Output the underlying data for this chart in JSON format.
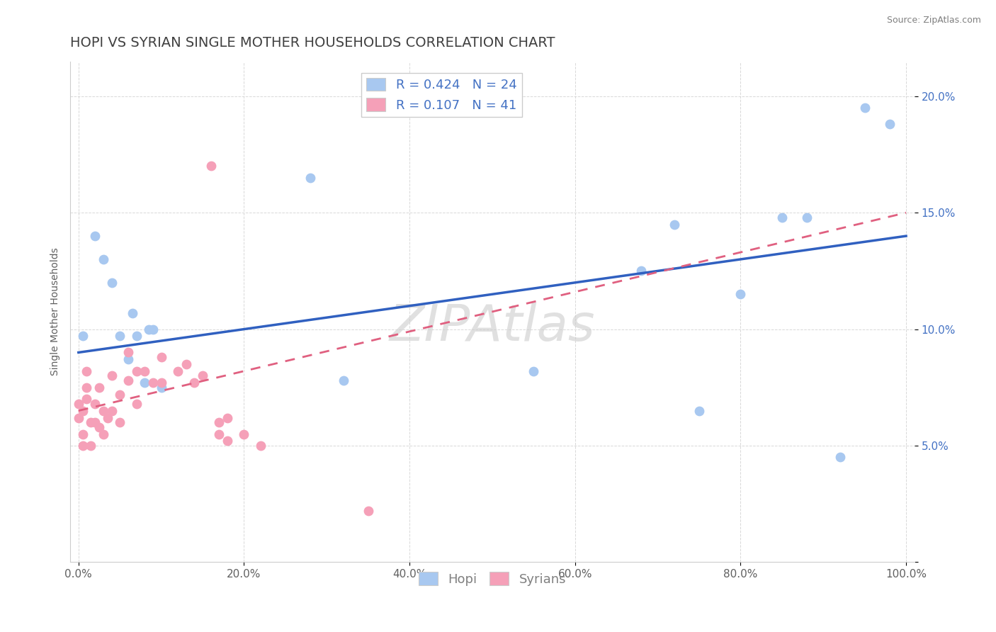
{
  "title": "HOPI VS SYRIAN SINGLE MOTHER HOUSEHOLDS CORRELATION CHART",
  "source": "Source: ZipAtlas.com",
  "ylabel": "Single Mother Households",
  "watermark": "ZIPAtlas",
  "hopi_r": 0.424,
  "hopi_n": 24,
  "syrian_r": 0.107,
  "syrian_n": 41,
  "hopi_color": "#a8c8f0",
  "syrian_color": "#f5a0b8",
  "hopi_line_color": "#3060c0",
  "syrian_line_color": "#e06080",
  "background_color": "#ffffff",
  "grid_color": "#d8d8d8",
  "title_color": "#404040",
  "ytick_color": "#4472c4",
  "hopi_points": [
    [
      0.005,
      0.097
    ],
    [
      0.02,
      0.14
    ],
    [
      0.03,
      0.13
    ],
    [
      0.04,
      0.12
    ],
    [
      0.05,
      0.097
    ],
    [
      0.06,
      0.087
    ],
    [
      0.065,
      0.107
    ],
    [
      0.07,
      0.097
    ],
    [
      0.08,
      0.077
    ],
    [
      0.085,
      0.1
    ],
    [
      0.09,
      0.1
    ],
    [
      0.1,
      0.075
    ],
    [
      0.28,
      0.165
    ],
    [
      0.32,
      0.078
    ],
    [
      0.55,
      0.082
    ],
    [
      0.68,
      0.125
    ],
    [
      0.72,
      0.145
    ],
    [
      0.75,
      0.065
    ],
    [
      0.8,
      0.115
    ],
    [
      0.85,
      0.148
    ],
    [
      0.88,
      0.148
    ],
    [
      0.92,
      0.045
    ],
    [
      0.95,
      0.195
    ],
    [
      0.98,
      0.188
    ]
  ],
  "syrian_points": [
    [
      0.0,
      0.068
    ],
    [
      0.0,
      0.062
    ],
    [
      0.005,
      0.055
    ],
    [
      0.005,
      0.05
    ],
    [
      0.005,
      0.065
    ],
    [
      0.01,
      0.075
    ],
    [
      0.01,
      0.082
    ],
    [
      0.01,
      0.07
    ],
    [
      0.015,
      0.06
    ],
    [
      0.015,
      0.05
    ],
    [
      0.02,
      0.068
    ],
    [
      0.02,
      0.06
    ],
    [
      0.025,
      0.075
    ],
    [
      0.025,
      0.058
    ],
    [
      0.03,
      0.065
    ],
    [
      0.03,
      0.055
    ],
    [
      0.035,
      0.062
    ],
    [
      0.04,
      0.08
    ],
    [
      0.04,
      0.065
    ],
    [
      0.05,
      0.072
    ],
    [
      0.05,
      0.06
    ],
    [
      0.06,
      0.078
    ],
    [
      0.06,
      0.09
    ],
    [
      0.07,
      0.082
    ],
    [
      0.07,
      0.068
    ],
    [
      0.08,
      0.082
    ],
    [
      0.09,
      0.077
    ],
    [
      0.1,
      0.077
    ],
    [
      0.1,
      0.088
    ],
    [
      0.12,
      0.082
    ],
    [
      0.13,
      0.085
    ],
    [
      0.14,
      0.077
    ],
    [
      0.15,
      0.08
    ],
    [
      0.16,
      0.17
    ],
    [
      0.17,
      0.06
    ],
    [
      0.17,
      0.055
    ],
    [
      0.18,
      0.052
    ],
    [
      0.18,
      0.062
    ],
    [
      0.2,
      0.055
    ],
    [
      0.22,
      0.05
    ],
    [
      0.35,
      0.022
    ]
  ],
  "xlim": [
    -0.01,
    1.01
  ],
  "ylim": [
    0.0,
    0.215
  ],
  "xticks": [
    0.0,
    0.2,
    0.4,
    0.6,
    0.8,
    1.0
  ],
  "yticks": [
    0.0,
    0.05,
    0.1,
    0.15,
    0.2
  ],
  "legend_labels": [
    "Hopi",
    "Syrians"
  ],
  "title_fontsize": 14,
  "axis_fontsize": 10,
  "tick_fontsize": 11,
  "legend_fontsize": 13
}
